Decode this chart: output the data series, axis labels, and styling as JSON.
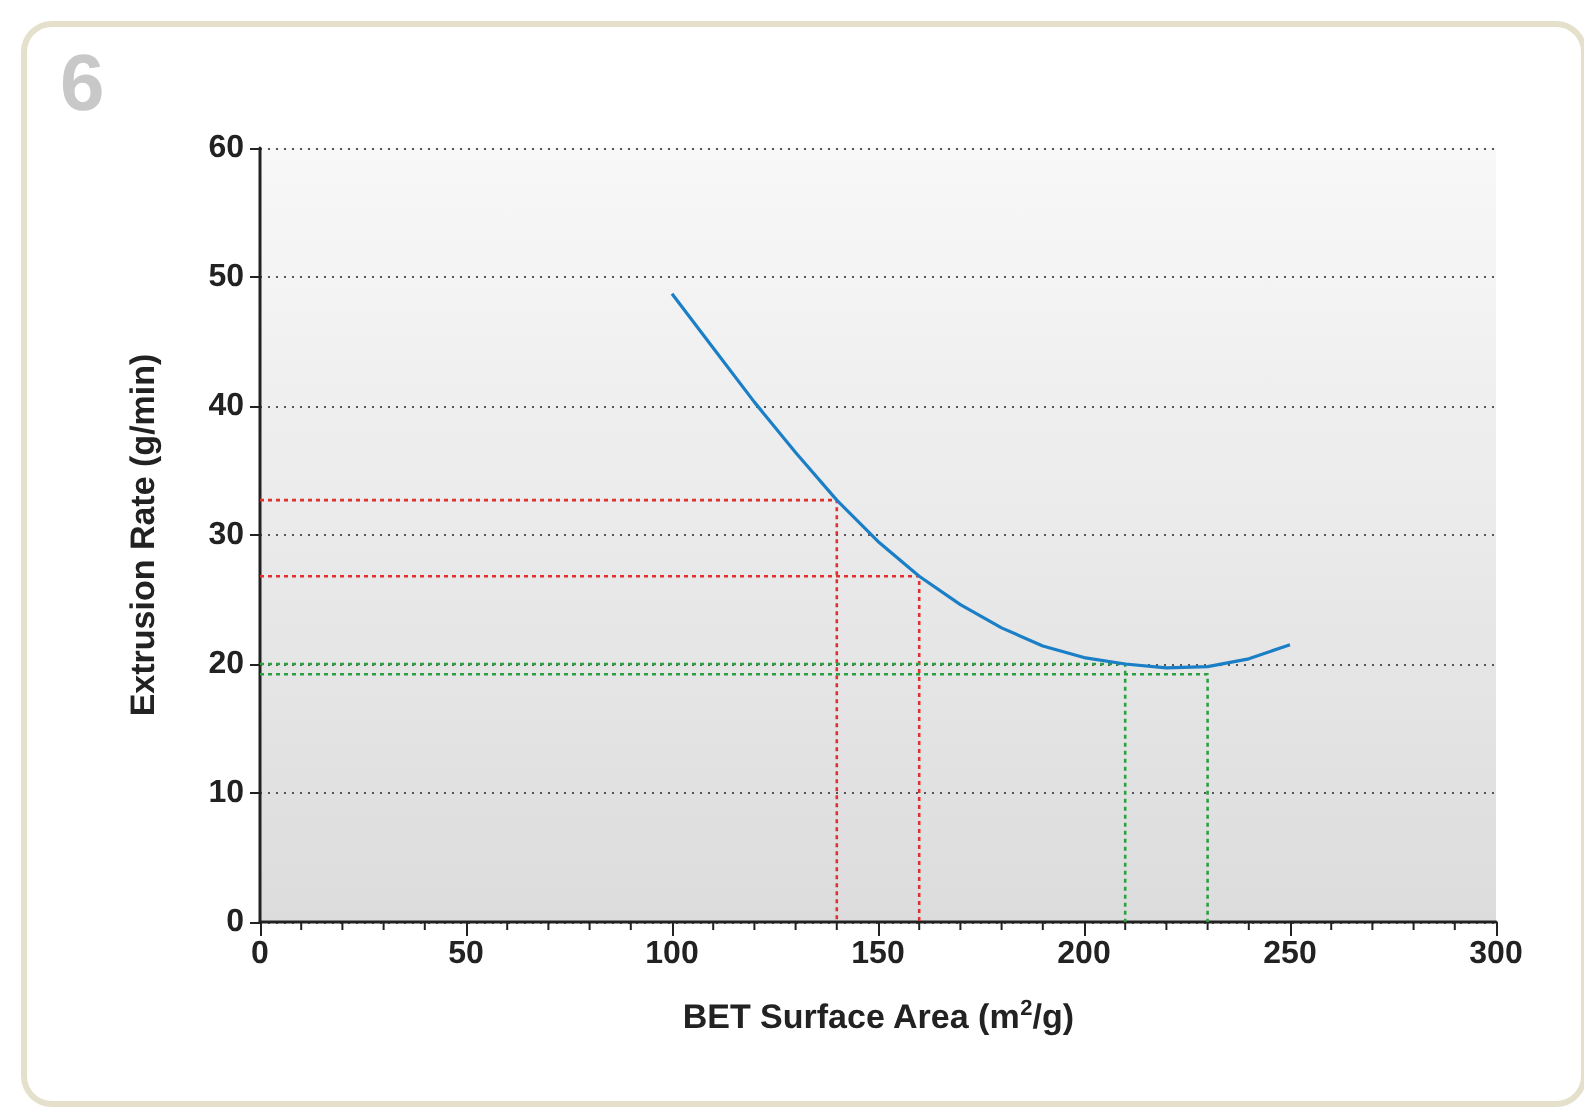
{
  "chart_data": {
    "type": "line",
    "xlabel": "BET Surface Area (m$^{2}$/g)",
    "ylabel": "Extrusion Rate (g/min)",
    "annotations": [
      "6"
    ],
    "xlim": [
      0,
      300
    ],
    "xticks": [
      0,
      50,
      100,
      150,
      200,
      250,
      300
    ],
    "ylim": [
      0,
      60
    ],
    "yticks": [
      0,
      10,
      20,
      30,
      40,
      50,
      60
    ],
    "grid": "y",
    "marker": "none",
    "line_style": "solid",
    "series": [
      {
        "color": "#1a7fc6",
        "x": [
          100,
          110,
          120,
          130,
          140,
          150,
          160,
          170,
          180,
          190,
          200,
          210,
          220,
          230,
          240,
          250
        ],
        "values": [
          48.7,
          44.5,
          40.3,
          36.4,
          32.7,
          29.5,
          26.8,
          24.6,
          22.8,
          21.4,
          20.5,
          20.0,
          19.7,
          19.8,
          20.4,
          21.5
        ]
      },
      {
        "color": "#e03030",
        "line_style": "dotted",
        "x": [
          0,
          140,
          140
        ],
        "values": [
          32.7,
          32.7,
          0
        ]
      },
      {
        "color": "#e03030",
        "line_style": "dotted",
        "x": [
          0,
          160,
          160
        ],
        "values": [
          26.8,
          26.8,
          0
        ]
      },
      {
        "color": "#2aa040",
        "line_style": "dotted",
        "x": [
          0,
          210,
          210
        ],
        "values": [
          20.0,
          20.0,
          0
        ]
      },
      {
        "color": "#2aa040",
        "line_style": "dotted",
        "x": [
          0,
          230,
          230
        ],
        "values": [
          19.2,
          19.2,
          0
        ]
      }
    ]
  }
}
